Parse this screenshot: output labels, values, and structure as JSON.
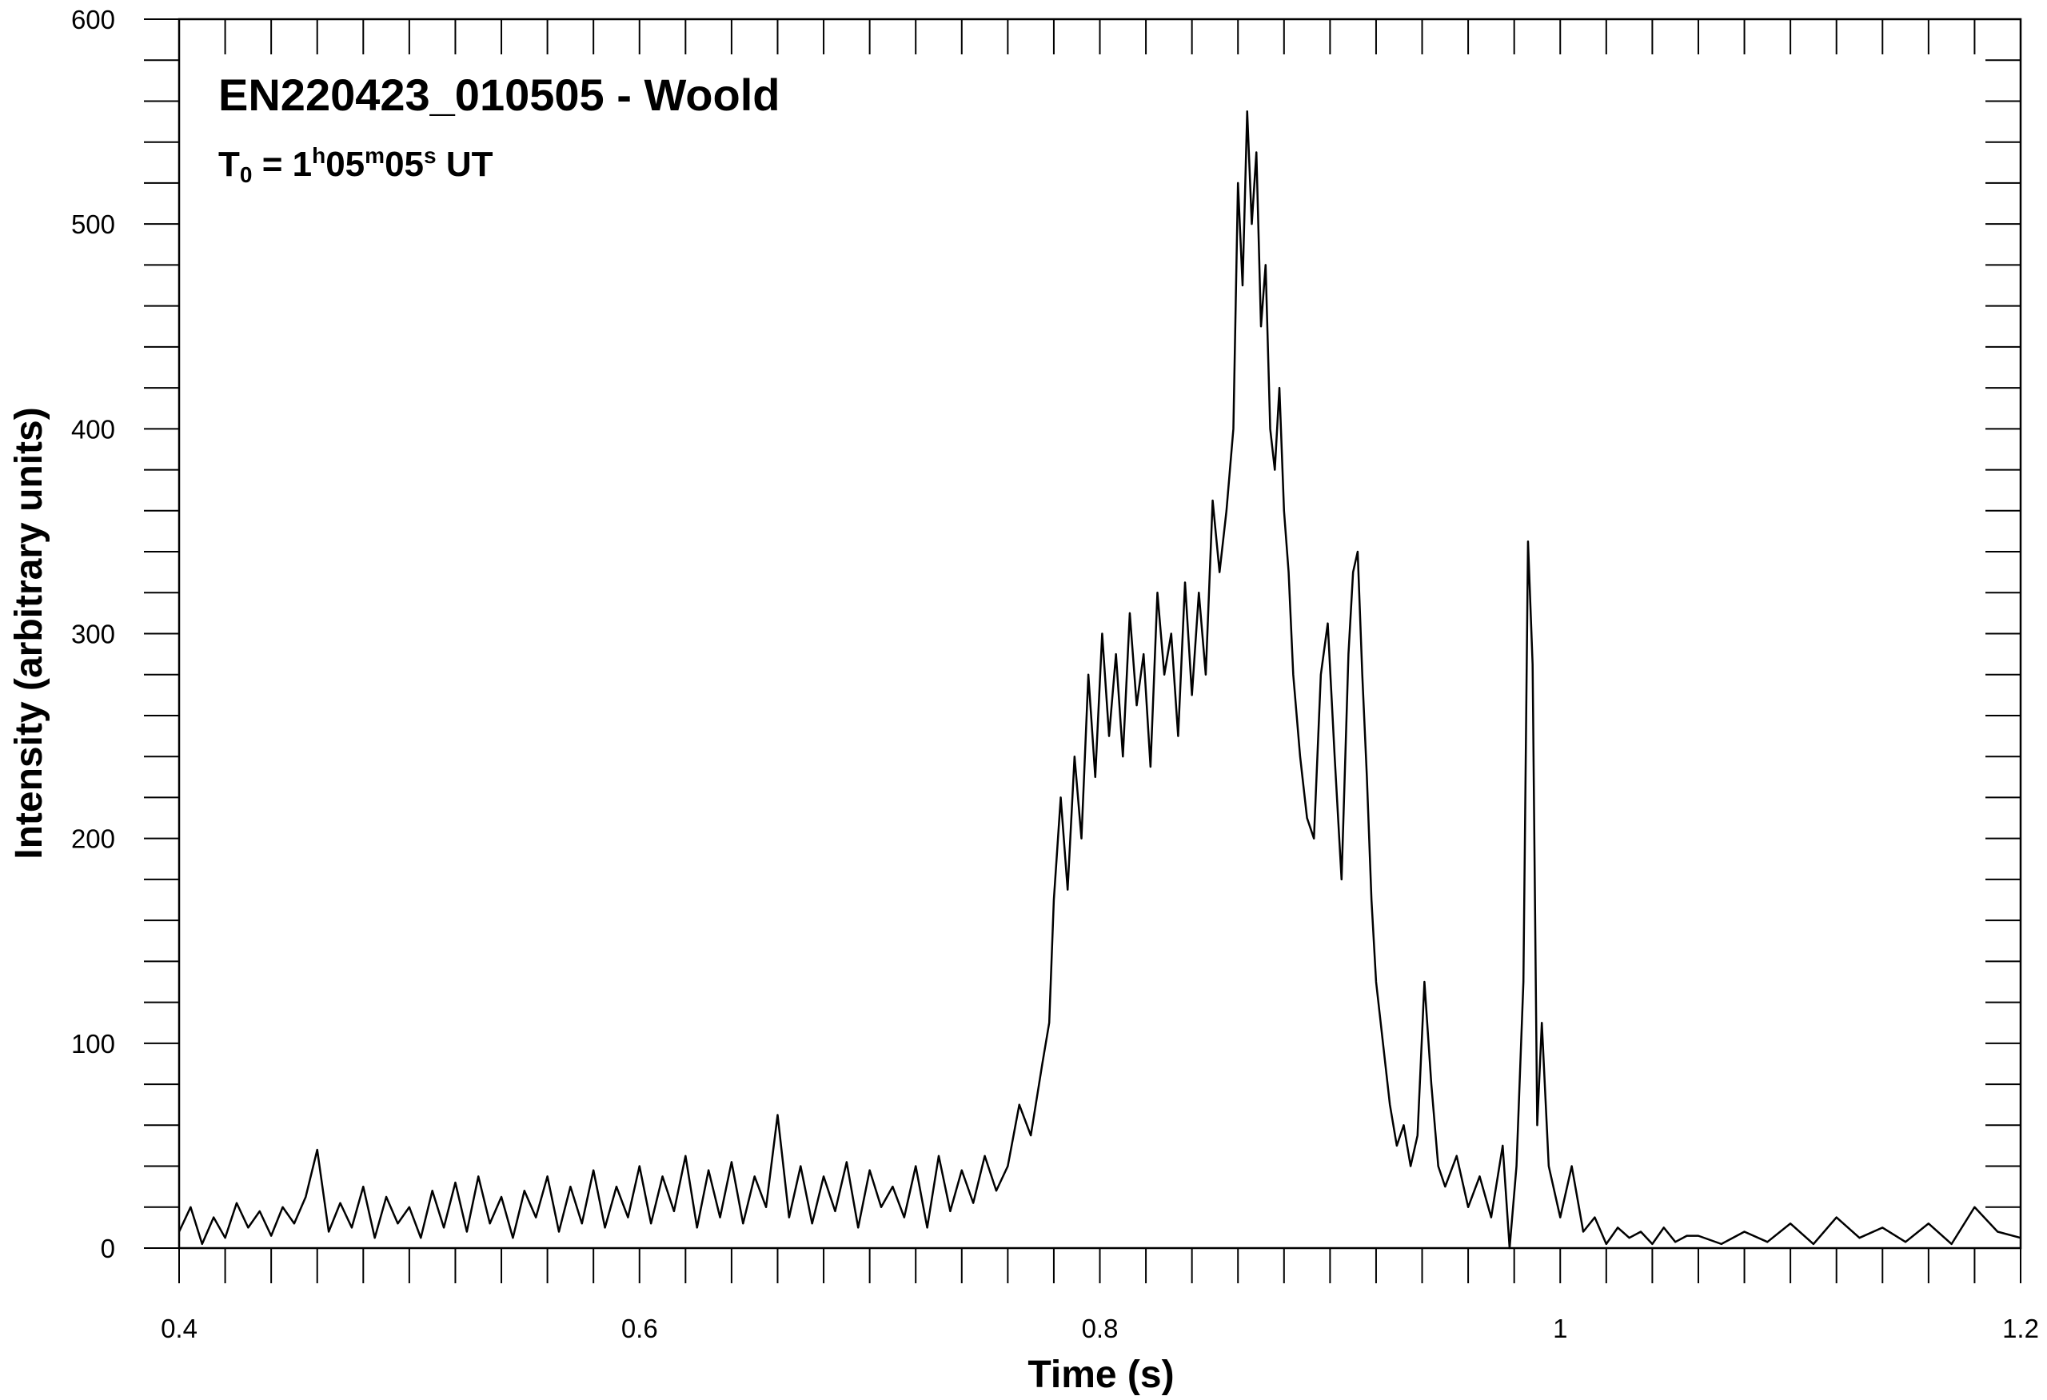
{
  "chart_data": {
    "type": "line",
    "title": "EN220423_010505 - Woold",
    "subtitle": [
      "T",
      "0",
      " = 1",
      "h",
      "05",
      "m",
      "05",
      "s",
      " UT"
    ],
    "xlabel": "Time (s)",
    "ylabel": "Intensity (arbitrary units)",
    "color": "#000000",
    "xlim": [
      0.4,
      1.2
    ],
    "ylim": [
      0,
      600
    ],
    "xticks": [
      0.4,
      0.6,
      0.8,
      1,
      1.2
    ],
    "yticks": [
      0,
      100,
      200,
      300,
      400,
      500,
      600
    ],
    "xminorticks": [
      0.42,
      0.44,
      0.46,
      0.48,
      0.5,
      0.52,
      0.54,
      0.56,
      0.58,
      0.62,
      0.64,
      0.66,
      0.68,
      0.7,
      0.72,
      0.74,
      0.76,
      0.78,
      0.82,
      0.84,
      0.86,
      0.88,
      0.9,
      0.92,
      0.94,
      0.96,
      0.98,
      1.02,
      1.04,
      1.06,
      1.08,
      1.1,
      1.12,
      1.14,
      1.16,
      1.18
    ],
    "yminorticks": [
      20,
      40,
      60,
      80,
      120,
      140,
      160,
      180,
      220,
      240,
      260,
      280,
      320,
      340,
      360,
      380,
      420,
      440,
      460,
      480,
      520,
      540,
      560,
      580
    ],
    "x": [
      0.4,
      0.405,
      0.41,
      0.415,
      0.42,
      0.425,
      0.43,
      0.435,
      0.44,
      0.445,
      0.45,
      0.455,
      0.46,
      0.465,
      0.47,
      0.475,
      0.48,
      0.485,
      0.49,
      0.495,
      0.5,
      0.505,
      0.51,
      0.515,
      0.52,
      0.525,
      0.53,
      0.535,
      0.54,
      0.545,
      0.55,
      0.555,
      0.56,
      0.565,
      0.57,
      0.575,
      0.58,
      0.585,
      0.59,
      0.595,
      0.6,
      0.605,
      0.61,
      0.615,
      0.62,
      0.625,
      0.63,
      0.635,
      0.64,
      0.645,
      0.65,
      0.655,
      0.66,
      0.665,
      0.67,
      0.675,
      0.68,
      0.685,
      0.69,
      0.695,
      0.7,
      0.705,
      0.71,
      0.715,
      0.72,
      0.725,
      0.73,
      0.735,
      0.74,
      0.745,
      0.75,
      0.755,
      0.76,
      0.765,
      0.77,
      0.775,
      0.778,
      0.78,
      0.783,
      0.786,
      0.789,
      0.792,
      0.795,
      0.798,
      0.801,
      0.804,
      0.807,
      0.81,
      0.813,
      0.816,
      0.819,
      0.822,
      0.825,
      0.828,
      0.831,
      0.834,
      0.837,
      0.84,
      0.843,
      0.846,
      0.849,
      0.852,
      0.855,
      0.858,
      0.86,
      0.862,
      0.864,
      0.866,
      0.868,
      0.87,
      0.872,
      0.874,
      0.876,
      0.878,
      0.88,
      0.882,
      0.884,
      0.887,
      0.89,
      0.893,
      0.896,
      0.899,
      0.902,
      0.905,
      0.908,
      0.91,
      0.912,
      0.914,
      0.916,
      0.918,
      0.92,
      0.923,
      0.926,
      0.929,
      0.932,
      0.935,
      0.938,
      0.941,
      0.944,
      0.947,
      0.95,
      0.955,
      0.96,
      0.965,
      0.97,
      0.975,
      0.978,
      0.981,
      0.984,
      0.986,
      0.988,
      0.99,
      0.992,
      0.995,
      1,
      1.005,
      1.01,
      1.015,
      1.02,
      1.025,
      1.03,
      1.035,
      1.04,
      1.045,
      1.05,
      1.055,
      1.06,
      1.07,
      1.08,
      1.09,
      1.1,
      1.11,
      1.12,
      1.13,
      1.14,
      1.15,
      1.16,
      1.17,
      1.18,
      1.19,
      1.2
    ],
    "values": [
      8,
      20,
      2,
      15,
      5,
      22,
      10,
      18,
      6,
      20,
      12,
      25,
      48,
      8,
      22,
      10,
      30,
      5,
      25,
      12,
      20,
      5,
      28,
      10,
      32,
      8,
      35,
      12,
      25,
      5,
      28,
      15,
      35,
      8,
      30,
      12,
      38,
      10,
      30,
      15,
      40,
      12,
      35,
      18,
      45,
      10,
      38,
      15,
      42,
      12,
      35,
      20,
      65,
      15,
      40,
      12,
      35,
      18,
      42,
      10,
      38,
      20,
      30,
      15,
      40,
      10,
      45,
      18,
      38,
      22,
      45,
      28,
      40,
      70,
      55,
      90,
      110,
      170,
      220,
      175,
      240,
      200,
      280,
      230,
      300,
      250,
      290,
      240,
      310,
      265,
      290,
      235,
      320,
      280,
      300,
      250,
      325,
      270,
      320,
      280,
      365,
      330,
      360,
      400,
      520,
      470,
      555,
      500,
      535,
      450,
      480,
      400,
      380,
      420,
      360,
      330,
      280,
      240,
      210,
      200,
      280,
      305,
      240,
      180,
      290,
      330,
      340,
      280,
      230,
      170,
      130,
      100,
      70,
      50,
      60,
      40,
      55,
      130,
      80,
      40,
      30,
      45,
      20,
      35,
      15,
      50,
      0,
      40,
      130,
      345,
      285,
      60,
      110,
      40,
      15,
      40,
      8,
      15,
      2,
      10,
      5,
      8,
      2,
      10,
      3,
      6,
      6,
      2,
      8,
      3,
      12,
      2,
      15,
      5,
      10,
      3,
      12,
      2,
      20,
      8,
      5
    ]
  }
}
